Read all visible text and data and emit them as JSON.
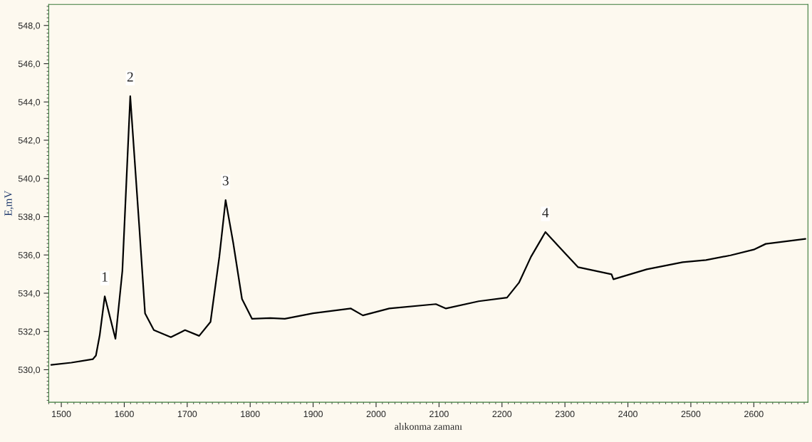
{
  "chart_data": {
    "type": "line",
    "xlabel": "alıkonma zamanı",
    "ylabel": "E,mV",
    "x": [
      1484,
      1516,
      1550,
      1555,
      1561,
      1569,
      1586,
      1597,
      1609.5,
      1624,
      1633,
      1647,
      1674,
      1696.5,
      1719,
      1737,
      1751,
      1761,
      1773,
      1787,
      1803,
      1832,
      1855,
      1900,
      1960,
      1979,
      2021,
      2095,
      2111,
      2163,
      2208,
      2227,
      2246,
      2269,
      2298,
      2321,
      2374,
      2377,
      2430,
      2487,
      2524,
      2563,
      2600,
      2619,
      2682
    ],
    "series": [
      {
        "color": "#000000",
        "values": [
          530.25,
          530.37,
          530.55,
          530.74,
          531.8,
          533.84,
          531.62,
          535.17,
          544.3,
          537.4,
          532.95,
          532.07,
          531.7,
          532.07,
          531.77,
          532.5,
          535.9,
          538.87,
          536.65,
          533.7,
          532.66,
          532.7,
          532.66,
          532.95,
          533.2,
          532.84,
          533.2,
          533.43,
          533.2,
          533.58,
          533.77,
          534.55,
          535.9,
          537.2,
          536.17,
          535.36,
          534.99,
          534.73,
          535.25,
          535.62,
          535.73,
          535.98,
          536.28,
          536.58,
          536.84
        ]
      }
    ],
    "xlim": [
      1480,
      2686
    ],
    "ylim": [
      528.3,
      549.1
    ],
    "xticks": [
      1500,
      1600,
      1700,
      1800,
      1900,
      2000,
      2100,
      2200,
      2300,
      2400,
      2500,
      2600
    ],
    "yticks": [
      {
        "value": 530,
        "label": "530,0"
      },
      {
        "value": 532,
        "label": "532,0"
      },
      {
        "value": 534,
        "label": "534,0"
      },
      {
        "value": 536,
        "label": "536,0"
      },
      {
        "value": 538,
        "label": "538,0"
      },
      {
        "value": 540,
        "label": "540,0"
      },
      {
        "value": 542,
        "label": "542,0"
      },
      {
        "value": 544,
        "label": "544,0"
      },
      {
        "value": 546,
        "label": "546,0"
      },
      {
        "value": 548,
        "label": "548,0"
      }
    ],
    "annotations": [
      {
        "text": "1",
        "x": 1569,
        "y": 533.84
      },
      {
        "text": "2",
        "x": 1609.5,
        "y": 544.3
      },
      {
        "text": "3",
        "x": 1761,
        "y": 538.87
      },
      {
        "text": "4",
        "x": 2269,
        "y": 537.2
      }
    ],
    "grid": false,
    "legend": false,
    "marker": "none",
    "line_style": "solid"
  }
}
